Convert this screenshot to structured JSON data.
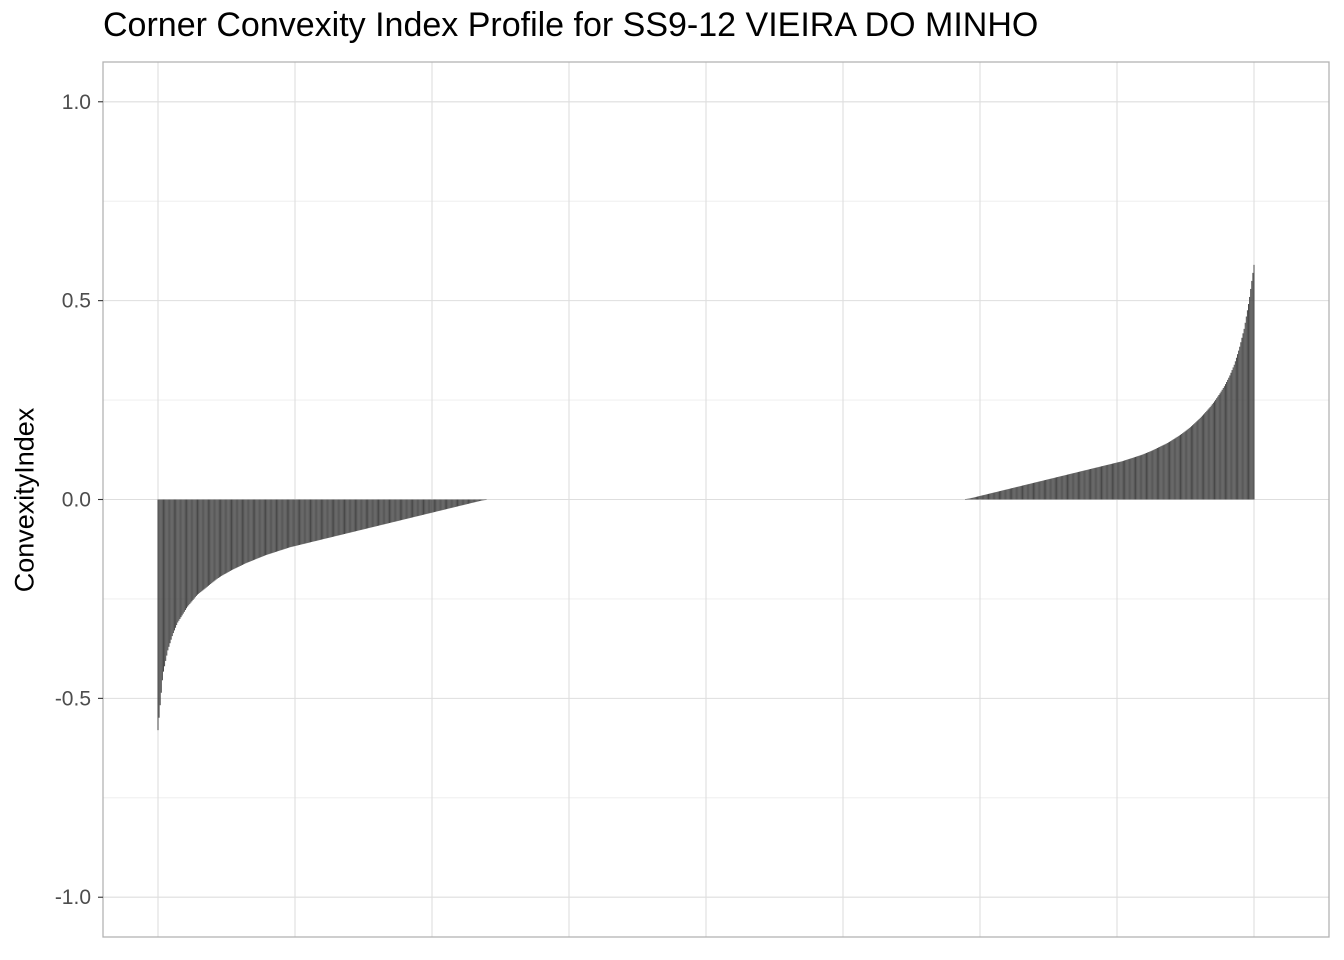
{
  "chart_data": {
    "type": "bar",
    "title": "Corner Convexity Index Profile for SS9-12 VIEIRA DO MINHO",
    "xlabel": "",
    "ylabel": "ConvexityIndex",
    "ylim": [
      -1.1,
      1.1
    ],
    "y_ticks": [
      "-1.0",
      "-0.5",
      "0.0",
      "0.5",
      "1.0"
    ],
    "x_ticks": [],
    "grid": true,
    "bar_color": "#474747",
    "background": "#ffffff",
    "grid_color": "#dedede",
    "panel_border_color": "#b3b3b3",
    "n_positions": 1000,
    "series": [
      {
        "x_start": 1,
        "count": 300,
        "values": [
          -0.58,
          -0.44,
          -0.38,
          -0.34,
          -0.31,
          -0.29,
          -0.27,
          -0.255,
          -0.24,
          -0.23,
          -0.22,
          -0.21,
          -0.2,
          -0.192,
          -0.185,
          -0.178,
          -0.172,
          -0.166,
          -0.16,
          -0.155,
          -0.15,
          -0.145,
          -0.14,
          -0.136,
          -0.132,
          -0.128,
          -0.124,
          -0.12,
          -0.117,
          -0.114,
          -0.111,
          -0.108,
          -0.105,
          -0.102,
          -0.099,
          -0.096,
          -0.093,
          -0.09,
          -0.087,
          -0.084,
          -0.081,
          -0.078,
          -0.075,
          -0.072,
          -0.069,
          -0.066,
          -0.063,
          -0.06,
          -0.057,
          -0.054,
          -0.051,
          -0.048,
          -0.045,
          -0.042,
          -0.039,
          -0.036,
          -0.033,
          -0.03,
          -0.027,
          -0.024,
          -0.021,
          -0.018,
          -0.015,
          -0.012,
          -0.009,
          -0.006,
          -0.003,
          -0.001
        ]
      },
      {
        "x_start": 737,
        "count": 264,
        "values": [
          0.001,
          0.003,
          0.006,
          0.009,
          0.012,
          0.015,
          0.018,
          0.021,
          0.024,
          0.027,
          0.03,
          0.033,
          0.036,
          0.039,
          0.042,
          0.045,
          0.048,
          0.051,
          0.054,
          0.057,
          0.06,
          0.063,
          0.066,
          0.069,
          0.072,
          0.075,
          0.078,
          0.081,
          0.084,
          0.087,
          0.09,
          0.093,
          0.096,
          0.1,
          0.104,
          0.108,
          0.112,
          0.117,
          0.122,
          0.128,
          0.134,
          0.14,
          0.147,
          0.155,
          0.163,
          0.172,
          0.182,
          0.193,
          0.205,
          0.218,
          0.232,
          0.248,
          0.266,
          0.286,
          0.31,
          0.34,
          0.38,
          0.43,
          0.5,
          0.59
        ]
      }
    ]
  }
}
